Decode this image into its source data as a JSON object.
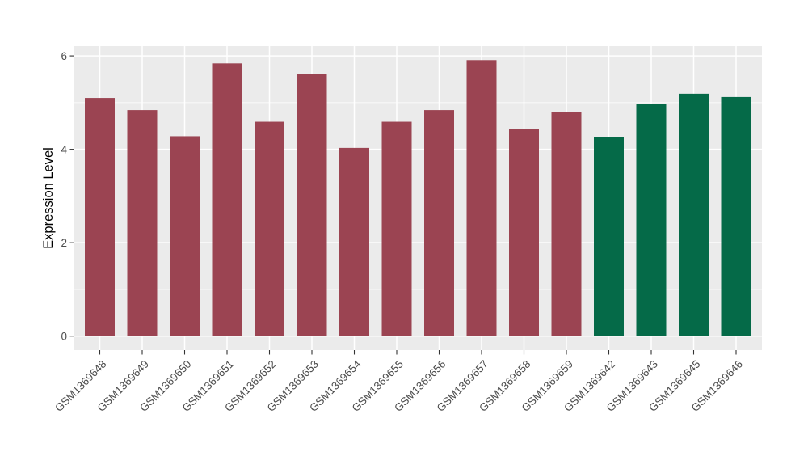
{
  "chart_data": {
    "type": "bar",
    "title": "",
    "xlabel": "",
    "ylabel": "Expression Level",
    "categories": [
      "GSM1369648",
      "GSM1369649",
      "GSM1369650",
      "GSM1369651",
      "GSM1369652",
      "GSM1369653",
      "GSM1369654",
      "GSM1369655",
      "GSM1369656",
      "GSM1369657",
      "GSM1369658",
      "GSM1369659",
      "GSM1369642",
      "GSM1369643",
      "GSM1369645",
      "GSM1369646"
    ],
    "values": [
      5.1,
      4.84,
      4.28,
      5.84,
      4.59,
      5.61,
      4.03,
      4.59,
      4.84,
      5.91,
      4.44,
      4.8,
      4.27,
      4.98,
      5.19,
      5.12
    ],
    "groups": [
      0,
      0,
      0,
      0,
      0,
      0,
      0,
      0,
      0,
      0,
      0,
      0,
      1,
      1,
      1,
      1
    ],
    "group_colors": [
      "#9B4452",
      "#056A48"
    ],
    "ytick_labels": [
      "0",
      "2",
      "4",
      "6"
    ],
    "yticks": [
      0,
      2,
      4,
      6
    ],
    "yticks_minor": [
      1,
      3,
      5
    ],
    "ylim": [
      0,
      6.2
    ],
    "grid": true,
    "legend_position": "none",
    "panel_bg": "#EBEBEB",
    "grid_color": "#FFFFFF",
    "tick_mark_color": "#333333",
    "tick_label_color": "#4D4D4D",
    "axis_title_color": "#000000",
    "x_label_angle_deg": 45
  }
}
